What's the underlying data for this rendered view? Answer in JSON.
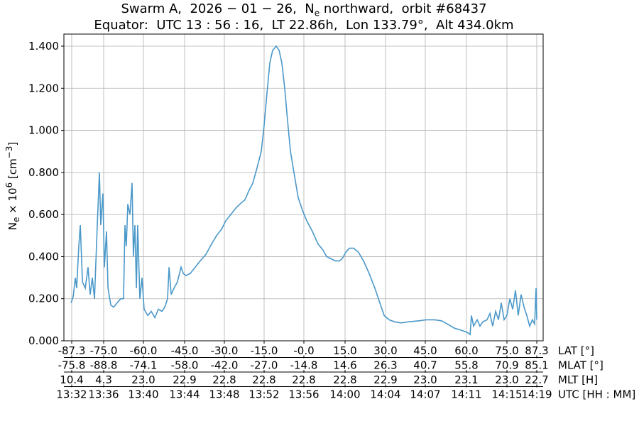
{
  "chart_data": {
    "type": "line",
    "title_line1": {
      "pre": "Swarm A,  2026 − 01 − 26,  N",
      "sub": "e",
      "post": " northward,  orbit #68437"
    },
    "title_line2": "Equator:  UTC 13 : 56 : 16,  LT 22.86h,  Lon 133.79°,  Alt 434.0km",
    "ylabel": {
      "pre": "N",
      "sub": "e",
      "mid": " × 10",
      "sup": "6",
      "unit_pre": " [cm",
      "unit_sup": "−3",
      "unit_post": "]"
    },
    "ylim": [
      0,
      1.4
    ],
    "yticks": [
      "0.000",
      "0.200",
      "0.400",
      "0.600",
      "0.800",
      "1.000",
      "1.200",
      "1.400"
    ],
    "grid": true,
    "line_color": "#4a98c9",
    "x_axes": [
      {
        "label": "LAT [°]",
        "ticks": [
          "-87.3",
          "-75.0",
          "-60.0",
          "-45.0",
          "-30.0",
          "-15.0",
          "-0.0",
          "15.0",
          "30.0",
          "45.0",
          "60.0",
          "75.0",
          "87.3"
        ]
      },
      {
        "label": "MLAT [°]",
        "ticks": [
          "-75.8",
          "-88.8",
          "-74.1",
          "-58.0",
          "-42.0",
          "-27.0",
          "-14.8",
          "14.6",
          "26.3",
          "40.7",
          "55.8",
          "70.9",
          "85.1"
        ]
      },
      {
        "label": "MLT [H]",
        "ticks": [
          "10.4",
          "4.3",
          "23.0",
          "22.9",
          "22.8",
          "22.8",
          "22.8",
          "22.8",
          "22.9",
          "23.0",
          "23.1",
          "23.0",
          "22.7"
        ]
      },
      {
        "label": "UTC [HH : MM]",
        "ticks": [
          "13:32",
          "13:36",
          "13:40",
          "13:44",
          "13:48",
          "13:52",
          "13:56",
          "14:00",
          "14:04",
          "14:07",
          "14:11",
          "14:15",
          "14:19"
        ]
      }
    ],
    "series": [
      {
        "x_utc": [
          "13:31:56",
          "13:32:09",
          "13:32:22",
          "13:32:30",
          "13:32:43",
          "13:32:52",
          "13:33:05",
          "13:33:22",
          "13:33:39",
          "13:33:52",
          "13:34:05",
          "13:34:18",
          "13:34:35",
          "13:34:48",
          "13:34:56",
          "13:35:09",
          "13:35:18",
          "13:35:31",
          "13:35:40",
          "13:35:57",
          "13:36:14",
          "13:36:35",
          "13:36:57",
          "13:37:14",
          "13:37:23",
          "13:37:31",
          "13:37:40",
          "13:37:53",
          "13:38:06",
          "13:38:14",
          "13:38:23",
          "13:38:32",
          "13:38:40",
          "13:38:53",
          "13:39:06",
          "13:39:19",
          "13:39:41",
          "13:40:02",
          "13:40:24",
          "13:40:45",
          "13:41:07",
          "13:41:24",
          "13:41:41",
          "13:41:50",
          "13:42:03",
          "13:42:20",
          "13:42:41",
          "13:43:03",
          "13:43:16",
          "13:43:33",
          "13:43:59",
          "13:44:29",
          "13:44:59",
          "13:45:33",
          "13:46:08",
          "13:46:38",
          "13:47:08",
          "13:47:34",
          "13:48:04",
          "13:48:34",
          "13:49:00",
          "13:49:30",
          "13:49:52",
          "13:50:18",
          "13:50:43",
          "13:51:09",
          "13:51:26",
          "13:51:44",
          "13:52:01",
          "13:52:18",
          "13:52:40",
          "13:52:57",
          "13:53:14",
          "13:53:31",
          "13:53:48",
          "13:54:06",
          "13:54:27",
          "13:54:53",
          "13:55:19",
          "13:55:45",
          "13:56:19",
          "13:56:53",
          "13:57:24",
          "13:57:45",
          "13:58:11",
          "13:58:37",
          "13:59:03",
          "13:59:20",
          "13:59:41",
          "14:00:03",
          "14:00:29",
          "14:00:59",
          "14:01:29",
          "14:02:03",
          "14:02:38",
          "14:03:08",
          "14:03:34",
          "14:04:04",
          "14:04:38",
          "14:05:17",
          "14:06:00",
          "14:07:05",
          "14:07:48",
          "14:08:39",
          "14:09:22",
          "14:09:57",
          "14:10:40",
          "14:11:23",
          "14:11:57",
          "14:12:15",
          "14:12:23",
          "14:12:36",
          "14:12:58",
          "14:13:15",
          "14:13:32",
          "14:13:58",
          "14:14:15",
          "14:14:32",
          "14:14:50",
          "14:15:07",
          "14:15:24",
          "14:15:41",
          "14:15:58",
          "14:16:16",
          "14:16:33",
          "14:16:50",
          "14:17:07",
          "14:17:24",
          "14:17:42",
          "14:17:59",
          "14:18:16",
          "14:18:33",
          "14:18:46",
          "14:18:55",
          "14:18:59"
        ],
        "ne": [
          0.18,
          0.21,
          0.3,
          0.25,
          0.45,
          0.55,
          0.28,
          0.25,
          0.35,
          0.22,
          0.3,
          0.2,
          0.55,
          0.8,
          0.55,
          0.7,
          0.35,
          0.52,
          0.25,
          0.17,
          0.16,
          0.18,
          0.2,
          0.2,
          0.55,
          0.45,
          0.65,
          0.6,
          0.75,
          0.4,
          0.55,
          0.25,
          0.55,
          0.2,
          0.3,
          0.15,
          0.12,
          0.14,
          0.11,
          0.15,
          0.14,
          0.16,
          0.2,
          0.35,
          0.22,
          0.25,
          0.28,
          0.35,
          0.32,
          0.31,
          0.32,
          0.35,
          0.38,
          0.41,
          0.46,
          0.5,
          0.53,
          0.57,
          0.6,
          0.63,
          0.65,
          0.67,
          0.71,
          0.75,
          0.82,
          0.9,
          1.02,
          1.18,
          1.32,
          1.38,
          1.4,
          1.38,
          1.32,
          1.2,
          1.05,
          0.9,
          0.8,
          0.68,
          0.62,
          0.57,
          0.52,
          0.46,
          0.43,
          0.4,
          0.39,
          0.38,
          0.38,
          0.39,
          0.42,
          0.44,
          0.44,
          0.42,
          0.38,
          0.32,
          0.25,
          0.18,
          0.12,
          0.1,
          0.09,
          0.085,
          0.09,
          0.095,
          0.1,
          0.1,
          0.095,
          0.08,
          0.06,
          0.05,
          0.04,
          0.03,
          0.12,
          0.07,
          0.1,
          0.07,
          0.09,
          0.1,
          0.13,
          0.07,
          0.14,
          0.1,
          0.18,
          0.1,
          0.12,
          0.2,
          0.15,
          0.24,
          0.12,
          0.22,
          0.16,
          0.12,
          0.07,
          0.1,
          0.08,
          0.25,
          0.1
        ]
      }
    ]
  }
}
